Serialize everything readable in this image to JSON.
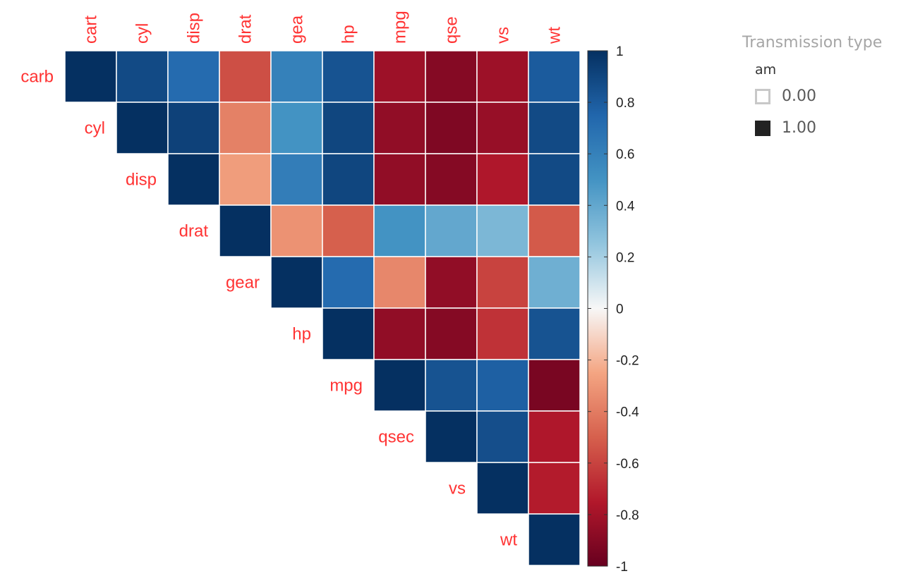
{
  "legend": {
    "title": "Transmission type",
    "subtitle": "am",
    "items": [
      {
        "label": "0.00",
        "swatch": "#ffffff",
        "border": "#c8c8c8"
      },
      {
        "label": "1.00",
        "swatch": "#222222",
        "border": "#222222"
      }
    ]
  },
  "chart_data": {
    "type": "heatmap",
    "variables": [
      "carb",
      "cyl",
      "disp",
      "drat",
      "gear",
      "hp",
      "mpg",
      "qsec",
      "vs",
      "wt"
    ],
    "top_labels": [
      "cart",
      "cyl",
      "disp",
      "drat",
      "gea",
      "hp",
      "mpg",
      "qse",
      "vs",
      "wt"
    ],
    "matrix": [
      [
        1.0,
        0.88,
        0.72,
        -0.56,
        0.6,
        0.84,
        -0.82,
        -0.9,
        -0.82,
        0.8
      ],
      [
        0.88,
        1.0,
        0.92,
        -0.38,
        0.5,
        0.9,
        -0.86,
        -0.92,
        -0.84,
        0.88
      ],
      [
        0.72,
        0.92,
        1.0,
        -0.28,
        0.62,
        0.9,
        -0.86,
        -0.9,
        -0.76,
        0.88
      ],
      [
        -0.56,
        -0.38,
        -0.28,
        1.0,
        -0.32,
        -0.5,
        0.5,
        0.4,
        0.32,
        -0.52
      ],
      [
        0.6,
        0.5,
        0.62,
        -0.32,
        1.0,
        0.72,
        -0.36,
        -0.86,
        -0.6,
        0.36
      ],
      [
        0.84,
        0.9,
        0.9,
        -0.5,
        0.72,
        1.0,
        -0.86,
        -0.9,
        -0.66,
        0.84
      ],
      [
        -0.82,
        -0.86,
        -0.86,
        0.5,
        -0.36,
        -0.86,
        1.0,
        0.84,
        0.78,
        -0.94
      ],
      [
        -0.9,
        -0.92,
        -0.9,
        0.4,
        -0.86,
        -0.9,
        0.84,
        1.0,
        0.86,
        -0.76
      ],
      [
        -0.82,
        -0.84,
        -0.76,
        0.32,
        -0.6,
        -0.66,
        0.78,
        0.86,
        1.0,
        -0.74
      ],
      [
        0.8,
        0.88,
        0.88,
        -0.52,
        0.36,
        0.84,
        -0.94,
        -0.76,
        -0.74,
        1.0
      ]
    ],
    "colorbar": {
      "range": [
        -1,
        1
      ],
      "ticks": [
        "1",
        "0.8",
        "0.6",
        "0.4",
        "0.2",
        "0",
        "-0.2",
        "-0.4",
        "-0.6",
        "-0.8",
        "-1"
      ]
    },
    "colors": {
      "negative": "#67001f",
      "neutral": "#f7f7f7",
      "positive": "#053061",
      "label": "#ff3333"
    }
  }
}
